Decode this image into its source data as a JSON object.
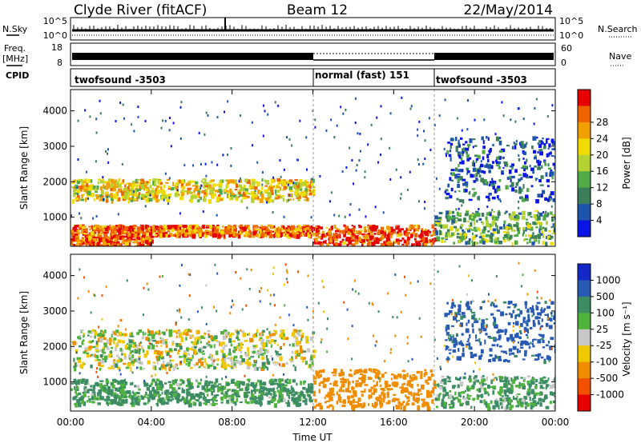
{
  "header": {
    "title": "Clyde River (fitACF)",
    "beam": "Beam 12",
    "date": "22/May/2014"
  },
  "strips": {
    "nsky_label": "N.Sky",
    "nsky_ticks": [
      "10^5",
      "10^0"
    ],
    "nsearch_label": "N.Search",
    "nsearch_ticks": [
      "10^5",
      "10^0"
    ],
    "freq_label_line1": "Freq.",
    "freq_label_line2": "[MHz]",
    "freq_ticks": [
      "18",
      "8"
    ],
    "nave_label": "Nave",
    "nave_ticks": [
      "60",
      "0"
    ],
    "cpid_label": "CPID",
    "cpid_segments": [
      {
        "label": "twofsound -3503",
        "start_hour": 0,
        "end_hour": 12
      },
      {
        "label": "normal (fast) 151",
        "start_hour": 12,
        "end_hour": 18
      },
      {
        "label": "twofsound -3503",
        "start_hour": 18,
        "end_hour": 24
      }
    ]
  },
  "chart_data": [
    {
      "type": "heatmap",
      "name": "power",
      "xlabel": "",
      "ylabel": "Slant Range [km]",
      "xlim": [
        0,
        24
      ],
      "ylim": [
        180,
        4600
      ],
      "yticks": [
        1000,
        2000,
        3000,
        4000
      ],
      "ytick_labels": [
        "1000",
        "2000",
        "3000",
        "4000"
      ],
      "colorbar_label": "Power [dB]",
      "colorbar_ticks": [
        "4",
        "8",
        "12",
        "16",
        "20",
        "24",
        "28"
      ],
      "colorbar_colors": [
        "#0a14e6",
        "#1e55aa",
        "#3c7d5a",
        "#50aa46",
        "#b4d232",
        "#f0dc00",
        "#f0a000",
        "#f06400",
        "#e60000"
      ],
      "scatter_bands": [
        {
          "x0": 0.0,
          "x1": 12.0,
          "y0": 500,
          "y1": 800,
          "power_db": 26
        },
        {
          "x0": 0.0,
          "x1": 4.0,
          "y0": 200,
          "y1": 500,
          "power_db": 27
        },
        {
          "x0": 0.0,
          "x1": 12.0,
          "y0": 1500,
          "y1": 2100,
          "power_db": 20
        },
        {
          "x0": 12.0,
          "x1": 18.0,
          "y0": 250,
          "y1": 800,
          "power_db": 28
        },
        {
          "x0": 18.0,
          "x1": 24.0,
          "y0": 300,
          "y1": 1200,
          "power_db": 12
        },
        {
          "x0": 18.5,
          "x1": 24.0,
          "y0": 1500,
          "y1": 3300,
          "power_db": 6
        }
      ]
    },
    {
      "type": "heatmap",
      "name": "velocity",
      "xlabel": "Time UT",
      "ylabel": "Slant Range [km]",
      "xlim": [
        0,
        24
      ],
      "xticks": [
        0,
        4,
        8,
        12,
        16,
        20,
        24
      ],
      "xtick_labels": [
        "00:00",
        "04:00",
        "08:00",
        "12:00",
        "16:00",
        "20:00",
        "00:00"
      ],
      "ylim": [
        180,
        4600
      ],
      "yticks": [
        1000,
        2000,
        3000,
        4000
      ],
      "ytick_labels": [
        "1000",
        "2000",
        "3000",
        "4000"
      ],
      "colorbar_label": "Velocity [m s⁻¹]",
      "colorbar_ticks": [
        "1000",
        "500",
        "100",
        "25",
        "-25",
        "-100",
        "-500",
        "-1000"
      ],
      "colorbar_colors": [
        "#1428c8",
        "#285ab4",
        "#3c8c64",
        "#50b43c",
        "#c8c8c8",
        "#f0c800",
        "#f08c00",
        "#f05000",
        "#e60000"
      ],
      "scatter_bands": [
        {
          "x0": 0.0,
          "x1": 12.0,
          "y0": 1400,
          "y1": 2500,
          "velocity": 0
        },
        {
          "x0": 0.0,
          "x1": 12.0,
          "y0": 400,
          "y1": 1100,
          "velocity": 150
        },
        {
          "x0": 12.0,
          "x1": 18.0,
          "y0": 300,
          "y1": 1400,
          "velocity": -300
        },
        {
          "x0": 18.0,
          "x1": 24.0,
          "y0": 300,
          "y1": 1200,
          "velocity": 120
        },
        {
          "x0": 18.5,
          "x1": 24.0,
          "y0": 1600,
          "y1": 3300,
          "velocity": 600
        }
      ]
    }
  ]
}
